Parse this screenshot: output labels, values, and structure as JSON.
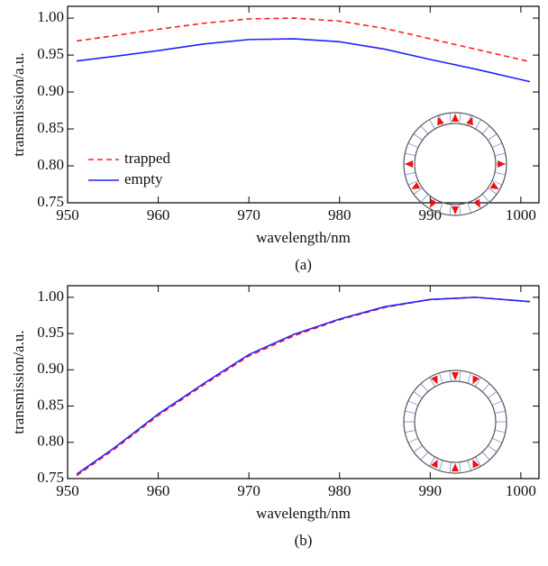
{
  "chart_data": [
    {
      "type": "line",
      "caption": "(a)",
      "x_label": "wavelength/nm",
      "y_label": "transmission/a.u.",
      "x": [
        951,
        955,
        960,
        965,
        970,
        975,
        980,
        985,
        990,
        995,
        1001
      ],
      "series": [
        {
          "name": "trapped",
          "color": "#ff2020",
          "dash": true,
          "values": [
            0.969,
            0.976,
            0.985,
            0.993,
            0.999,
            1.0,
            0.996,
            0.986,
            0.972,
            0.958,
            0.941
          ]
        },
        {
          "name": "empty",
          "color": "#2020ff",
          "dash": false,
          "values": [
            0.942,
            0.948,
            0.956,
            0.965,
            0.971,
            0.972,
            0.968,
            0.958,
            0.944,
            0.931,
            0.914
          ]
        }
      ],
      "xlim": [
        950,
        1002
      ],
      "ylim": [
        0.75,
        1.016
      ],
      "xticks": [
        950,
        960,
        970,
        980,
        990,
        1000
      ],
      "yticks": [
        {
          "value": 0.75,
          "label": "0.75"
        },
        {
          "value": 0.8,
          "label": "0.80"
        },
        {
          "value": 0.85,
          "label": "0.85"
        },
        {
          "value": 0.9,
          "label": "0.90"
        },
        {
          "value": 0.95,
          "label": "0.95"
        },
        {
          "value": 1.0,
          "label": "1.00"
        }
      ],
      "legend": "lower-left"
    },
    {
      "type": "line",
      "caption": "(b)",
      "x_label": "wavelength/nm",
      "y_label": "transmission/a.u.",
      "x": [
        951,
        955,
        960,
        965,
        970,
        975,
        980,
        985,
        990,
        995,
        1001
      ],
      "series": [
        {
          "color": "#ff2020",
          "dash": true,
          "values": [
            0.754,
            0.789,
            0.837,
            0.879,
            0.919,
            0.947,
            0.969,
            0.986,
            0.997,
            1.0,
            0.994
          ]
        },
        {
          "color": "#2020ff",
          "dash": false,
          "values": [
            0.756,
            0.791,
            0.839,
            0.881,
            0.921,
            0.949,
            0.97,
            0.987,
            0.997,
            1.0,
            0.994
          ]
        }
      ],
      "xlim": [
        950,
        1002
      ],
      "ylim": [
        0.75,
        1.016
      ],
      "xticks": [
        950,
        960,
        970,
        980,
        990,
        1000
      ],
      "yticks": [
        {
          "value": 0.75,
          "label": "0.75"
        },
        {
          "value": 0.8,
          "label": "0.80"
        },
        {
          "value": 0.85,
          "label": "0.85"
        },
        {
          "value": 0.9,
          "label": "0.90"
        },
        {
          "value": 0.95,
          "label": "0.95"
        },
        {
          "value": 1.0,
          "label": "1.00"
        }
      ]
    }
  ]
}
